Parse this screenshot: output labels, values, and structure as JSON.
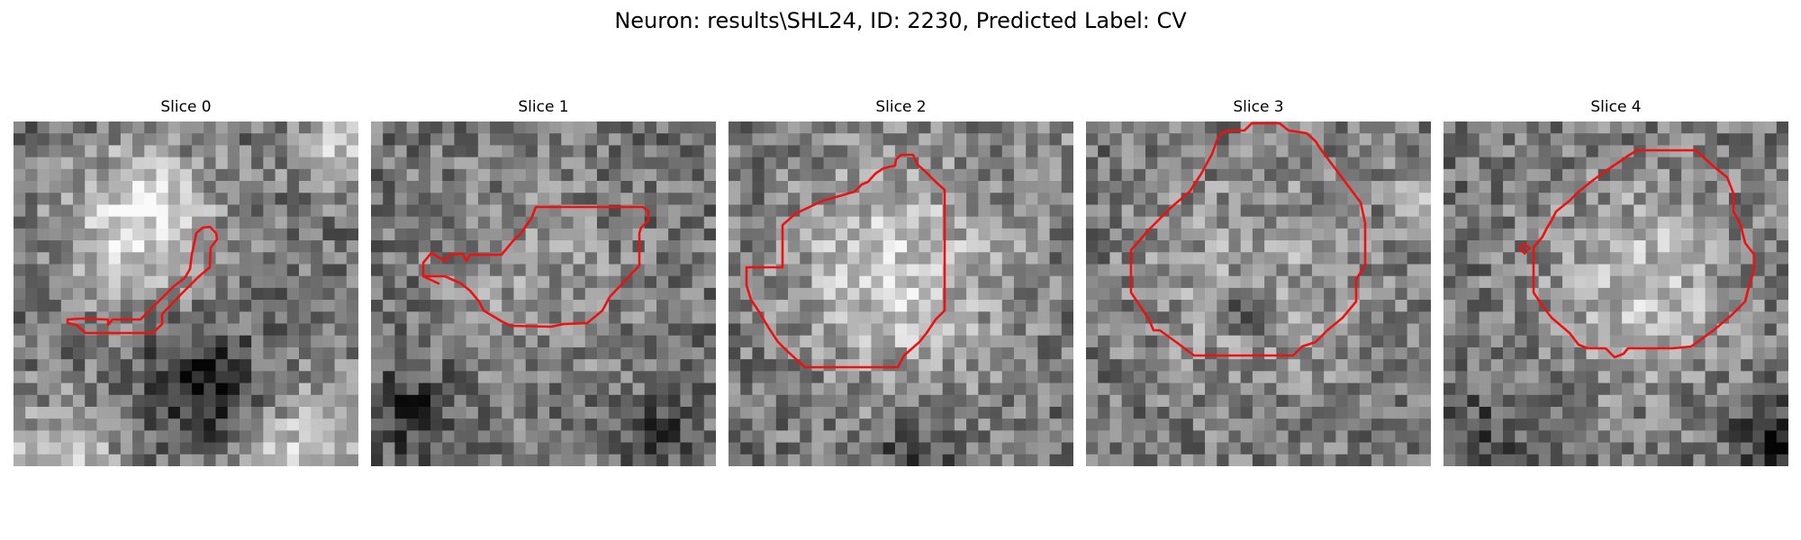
{
  "figure": {
    "title": "Neuron: results\\SHL24, ID: 2230, Predicted Label: CV"
  },
  "colors": {
    "contour": "#ee1111"
  },
  "panels": [
    {
      "title": "Slice 0"
    },
    {
      "title": "Slice 1"
    },
    {
      "title": "Slice 2"
    },
    {
      "title": "Slice 3"
    },
    {
      "title": "Slice 4"
    }
  ]
}
